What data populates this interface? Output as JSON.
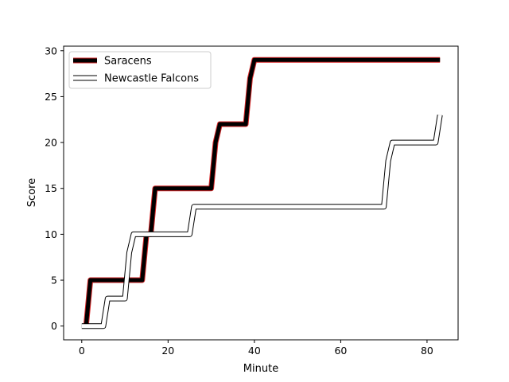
{
  "chart_data": {
    "type": "line",
    "title": "",
    "xlabel": "Minute",
    "ylabel": "Score",
    "xlim": [
      -4.2,
      87.2
    ],
    "ylim": [
      -1.5,
      30.5
    ],
    "xticks": [
      0,
      20,
      40,
      60,
      80
    ],
    "yticks": [
      0,
      5,
      10,
      15,
      20,
      25,
      30
    ],
    "grid": false,
    "legend_position": "top-left",
    "series": [
      {
        "name": "Saracens",
        "style": "double-stroke",
        "outer_color": "#d62728",
        "inner_color": "#000000",
        "x": [
          1,
          2,
          14,
          15,
          16,
          17,
          30,
          31,
          32,
          38,
          39,
          40,
          83
        ],
        "y": [
          0,
          5,
          5,
          10,
          10,
          15,
          15,
          20,
          22,
          22,
          27,
          29,
          29
        ]
      },
      {
        "name": "Newcastle Falcons",
        "style": "hollow",
        "outer_color": "#000000",
        "inner_color": "#ffffff",
        "x": [
          0,
          5,
          6,
          10,
          11,
          12,
          25,
          26,
          70,
          71,
          72,
          82,
          83
        ],
        "y": [
          0,
          0,
          3,
          3,
          8,
          10,
          10,
          13,
          13,
          18,
          20,
          20,
          23
        ]
      }
    ]
  }
}
